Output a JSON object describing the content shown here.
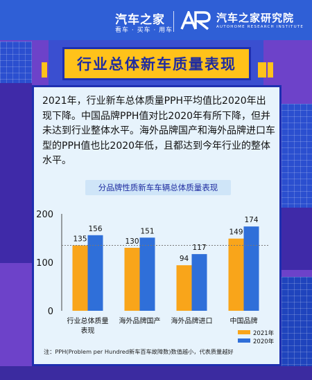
{
  "header": {
    "brand_name": "汽车之家",
    "brand_tagline": "看车 · 买车 · 用车",
    "institute_name": "汽车之家研究院",
    "institute_en": "AUTOHOME RESEARCH INSTITUTE"
  },
  "title": "行业总体新车质量表现",
  "description": "2021年，行业新车总体质量PPH平均值比2020年出现下降。中国品牌PPH值对比2020年有所下降，但并未达到行业整体水平。海外品牌国产和海外品牌进口车型的PPH值也比2020年低，且都达到今年行业的整体水平。",
  "chart_data": {
    "type": "bar",
    "title": "分品牌性质新车车辆总体质量表现",
    "categories": [
      "行业总体质量表现",
      "海外品牌国产",
      "海外品牌进口",
      "中国品牌"
    ],
    "series": [
      {
        "name": "2021年",
        "values": [
          135,
          130,
          94,
          149
        ],
        "color": "#f9a51a"
      },
      {
        "name": "2020年",
        "values": [
          156,
          151,
          117,
          174
        ],
        "color": "#2f6fd9"
      }
    ],
    "ylim": [
      0,
      200
    ],
    "yticks": [
      0,
      100,
      200
    ],
    "reference_line": 135,
    "grid": false,
    "legend": "bottom-right"
  },
  "note": "注：PPH(Problem per Hundred新车百车故障数)数值越小，代表质量越好"
}
